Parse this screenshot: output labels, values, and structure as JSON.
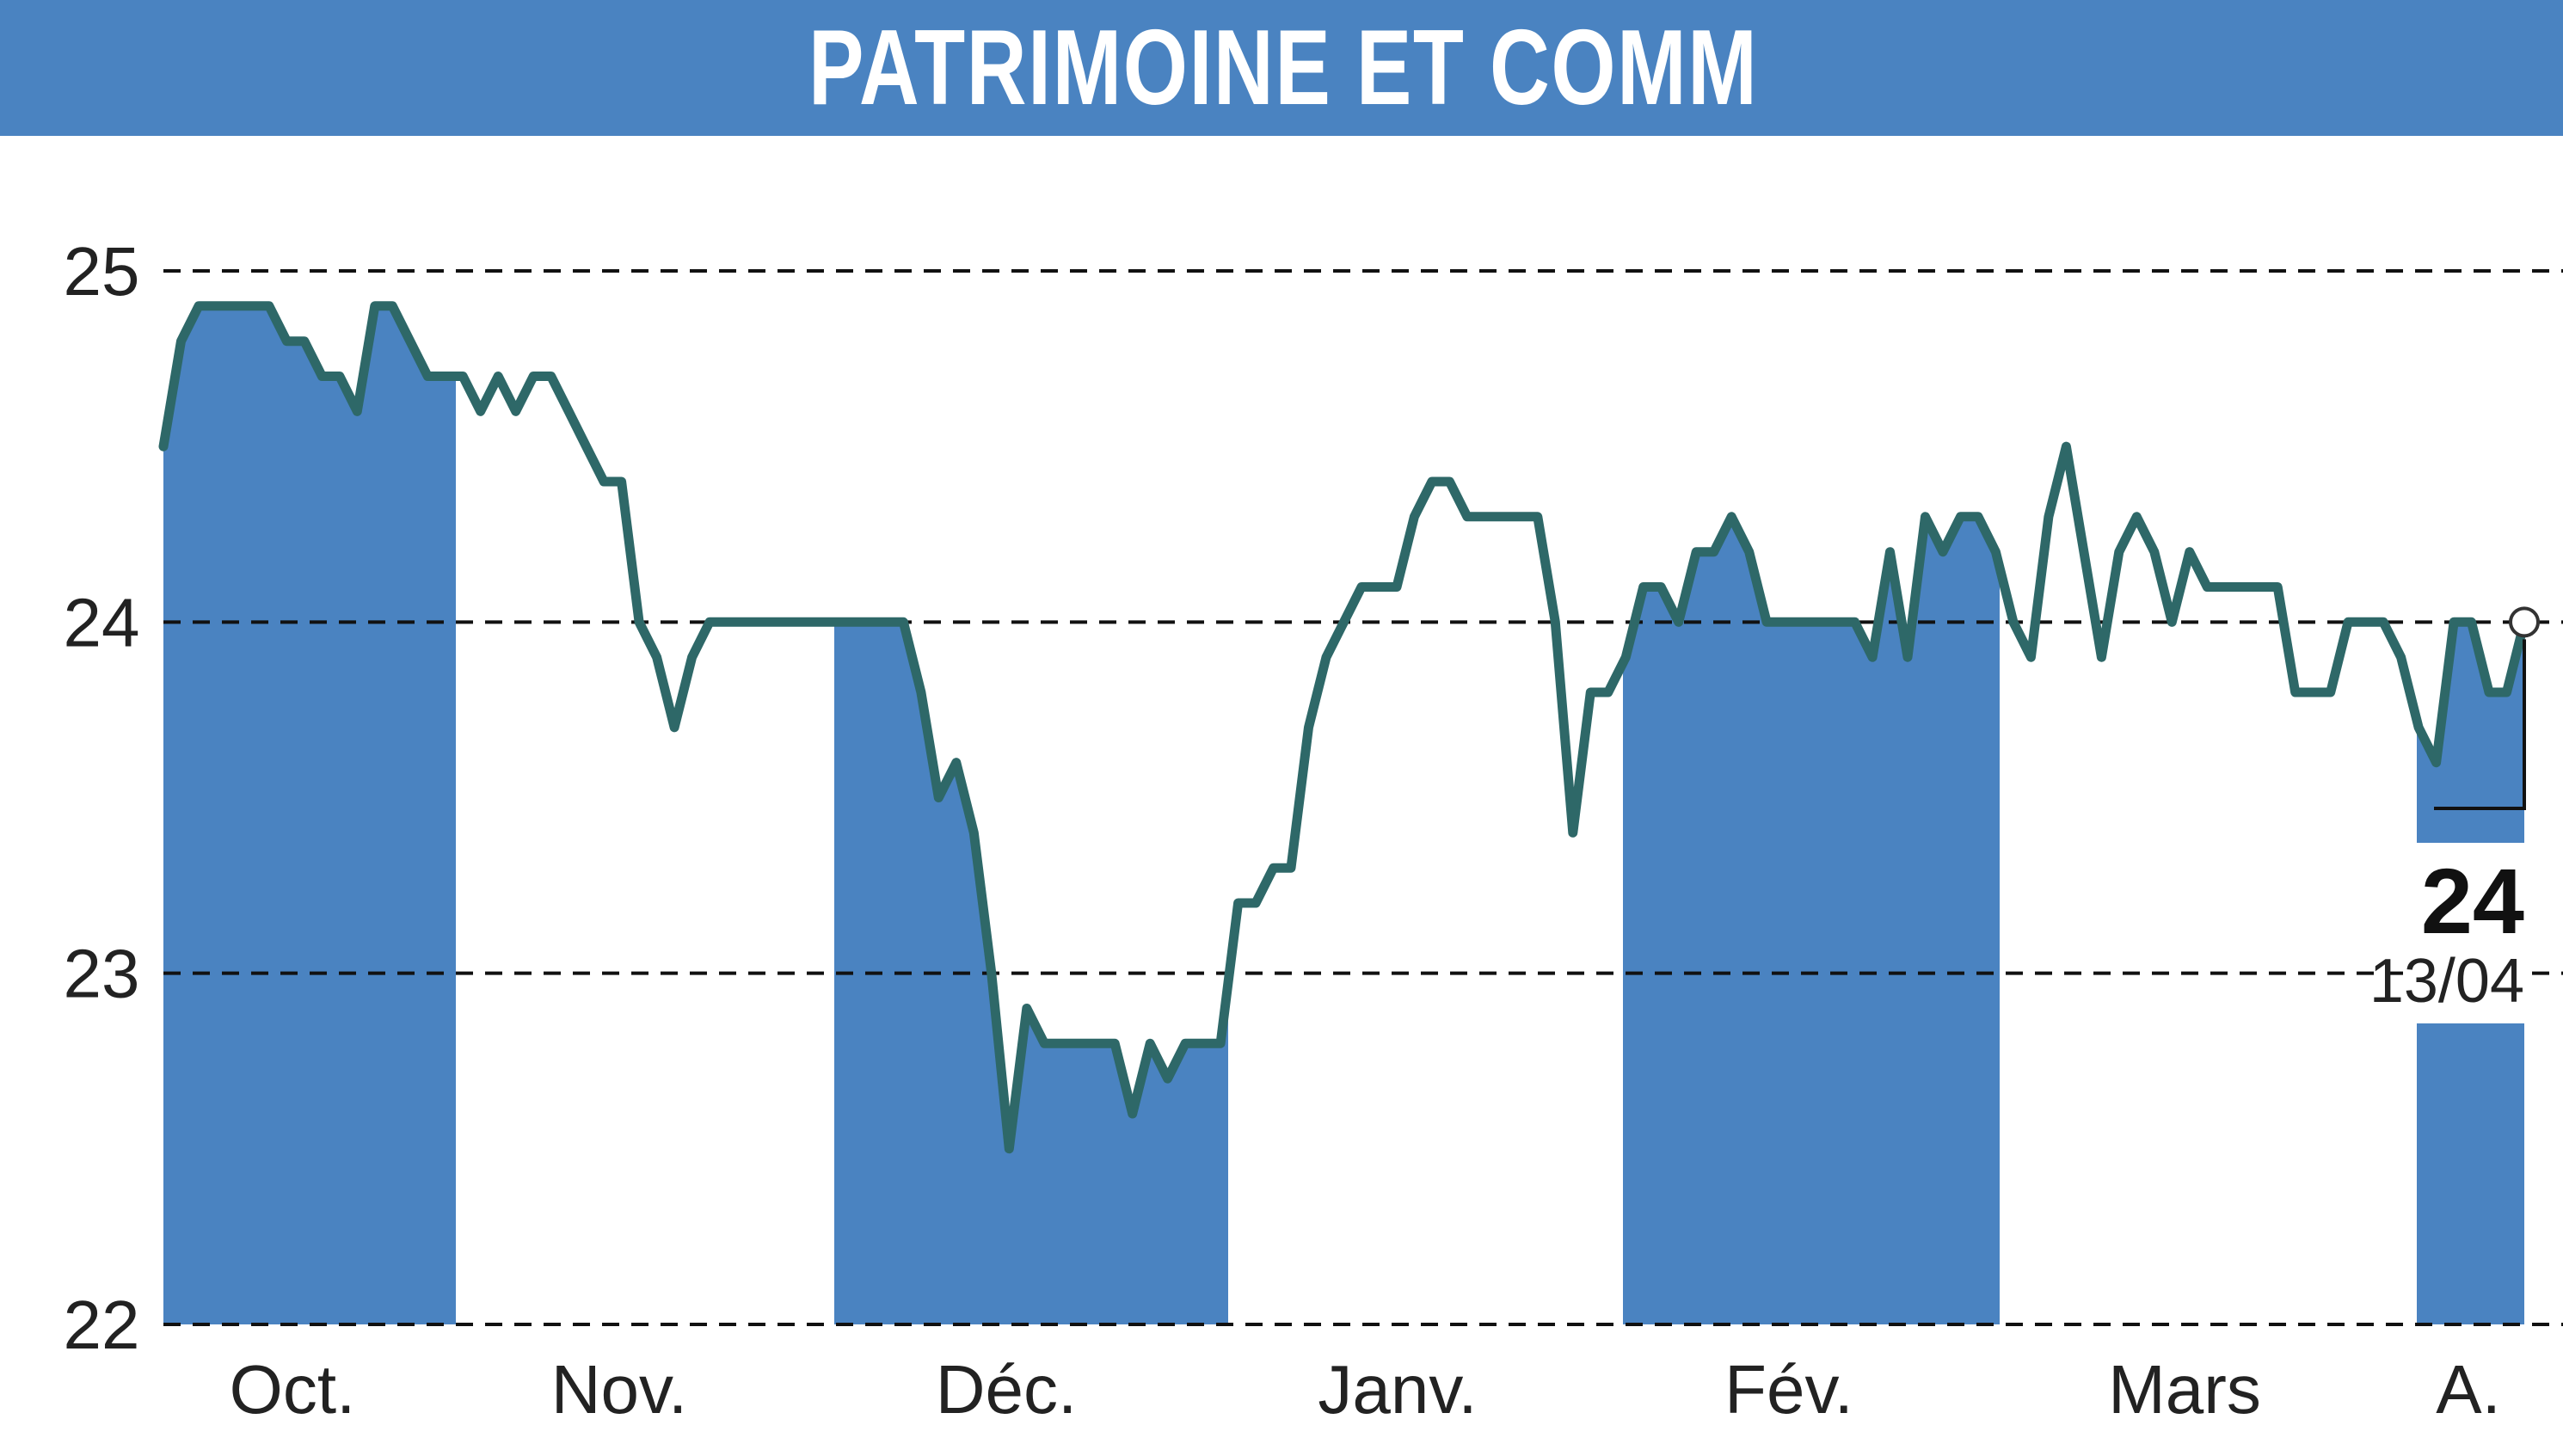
{
  "title": "PATRIMOINE ET COMM",
  "colors": {
    "header": "#4a83c1",
    "band": "#4a83c1",
    "line": "#2e6868",
    "grid": "#111111"
  },
  "chart_data": {
    "type": "line",
    "title": "PATRIMOINE ET COMM",
    "xlabel": "",
    "ylabel": "",
    "ylim": [
      22,
      25
    ],
    "yticks": [
      22,
      23,
      24,
      25
    ],
    "ytick_labels": [
      "22",
      "23",
      "24",
      "25"
    ],
    "months": [
      "Oct.",
      "Nov.",
      "Déc.",
      "Janv.",
      "Fév.",
      "Mars",
      "A."
    ],
    "shaded_months": [
      "Oct.",
      "Déc.",
      "Fév.",
      "A."
    ],
    "grid": "horizontal dashed",
    "last_value": "24",
    "last_date": "13/04",
    "series": [
      {
        "values": [
          24.5,
          24.8,
          24.9,
          24.9,
          24.9,
          24.9,
          24.9,
          24.8,
          24.8,
          24.7,
          24.7,
          24.6,
          24.9,
          24.9,
          24.8,
          24.7,
          24.7,
          24.7,
          24.6,
          24.7,
          24.6,
          24.7,
          24.7,
          24.6,
          24.5,
          24.4,
          24.4,
          24.0,
          23.9,
          23.7,
          23.9,
          24.0,
          24.0,
          24.0,
          24.0,
          24.0,
          24.0,
          24.0,
          24.0,
          24.0,
          24.0,
          24.0,
          24.0,
          23.8,
          23.5,
          23.6,
          23.4,
          23.0,
          22.5,
          22.9,
          22.8,
          22.8,
          22.8,
          22.8,
          22.8,
          22.6,
          22.8,
          22.7,
          22.8,
          22.8,
          22.8,
          23.2,
          23.2,
          23.3,
          23.3,
          23.7,
          23.9,
          24.0,
          24.1,
          24.1,
          24.1,
          24.3,
          24.4,
          24.4,
          24.3,
          24.3,
          24.3,
          24.3,
          24.3,
          24.0,
          23.4,
          23.8,
          23.8,
          23.9,
          24.1,
          24.1,
          24.0,
          24.2,
          24.2,
          24.3,
          24.2,
          24.0,
          24.0,
          24.0,
          24.0,
          24.0,
          24.0,
          23.9,
          24.2,
          23.9,
          24.3,
          24.2,
          24.3,
          24.3,
          24.2,
          24.0,
          23.9,
          24.3,
          24.5,
          24.2,
          23.9,
          24.2,
          24.3,
          24.2,
          24.0,
          24.2,
          24.1,
          24.1,
          24.1,
          24.1,
          24.1,
          23.8,
          23.8,
          23.8,
          24.0,
          24.0,
          24.0,
          23.9,
          23.7,
          23.6,
          24.0,
          24.0,
          23.8,
          23.8,
          24.0
        ]
      }
    ]
  }
}
